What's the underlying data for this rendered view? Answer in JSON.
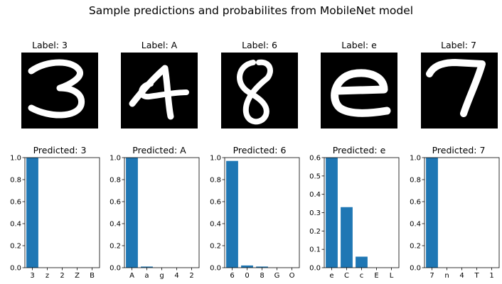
{
  "figure": {
    "title": "Sample predictions and probabilites from MobileNet model"
  },
  "colors": {
    "bar": "#1f77b4",
    "axis": "#000000",
    "image_bg": "#000000",
    "stroke": "#ffffff"
  },
  "panels": [
    {
      "label_title": "Label: 3",
      "digit_icon": "digit-3-icon",
      "predicted_title": "Predicted: 3"
    },
    {
      "label_title": "Label: A",
      "digit_icon": "letter-a-icon",
      "predicted_title": "Predicted: A"
    },
    {
      "label_title": "Label: 6",
      "digit_icon": "digit-6-icon",
      "predicted_title": "Predicted: 6"
    },
    {
      "label_title": "Label: e",
      "digit_icon": "letter-e-icon",
      "predicted_title": "Predicted: e"
    },
    {
      "label_title": "Label: 7",
      "digit_icon": "digit-7-icon",
      "predicted_title": "Predicted: 7"
    }
  ],
  "chart_data": [
    {
      "type": "bar",
      "title": "Predicted: 3",
      "categories": [
        "3",
        "z",
        "2",
        "Z",
        "B"
      ],
      "values": [
        1.0,
        0.0,
        0.0,
        0.0,
        0.0
      ],
      "ylim": [
        0,
        1.0
      ],
      "yticks": [
        0.0,
        0.2,
        0.4,
        0.6,
        0.8,
        1.0
      ]
    },
    {
      "type": "bar",
      "title": "Predicted: A",
      "categories": [
        "A",
        "a",
        "g",
        "4",
        "2"
      ],
      "values": [
        1.0,
        0.01,
        0.0,
        0.0,
        0.0
      ],
      "ylim": [
        0,
        1.0
      ],
      "yticks": [
        0.0,
        0.2,
        0.4,
        0.6,
        0.8,
        1.0
      ]
    },
    {
      "type": "bar",
      "title": "Predicted: 6",
      "categories": [
        "6",
        "0",
        "8",
        "G",
        "O"
      ],
      "values": [
        0.97,
        0.02,
        0.01,
        0.0,
        0.0
      ],
      "ylim": [
        0,
        1.0
      ],
      "yticks": [
        0.0,
        0.2,
        0.4,
        0.6,
        0.8,
        1.0
      ]
    },
    {
      "type": "bar",
      "title": "Predicted: e",
      "categories": [
        "e",
        "C",
        "c",
        "E",
        "L"
      ],
      "values": [
        0.61,
        0.33,
        0.06,
        0.0,
        0.0
      ],
      "ylim": [
        0,
        0.6
      ],
      "yticks": [
        0.0,
        0.1,
        0.2,
        0.3,
        0.4,
        0.5,
        0.6
      ]
    },
    {
      "type": "bar",
      "title": "Predicted: 7",
      "categories": [
        "7",
        "n",
        "4",
        "T",
        "1"
      ],
      "values": [
        1.0,
        0.0,
        0.0,
        0.0,
        0.0
      ],
      "ylim": [
        0,
        1.0
      ],
      "yticks": [
        0.0,
        0.2,
        0.4,
        0.6,
        0.8,
        1.0
      ]
    }
  ]
}
